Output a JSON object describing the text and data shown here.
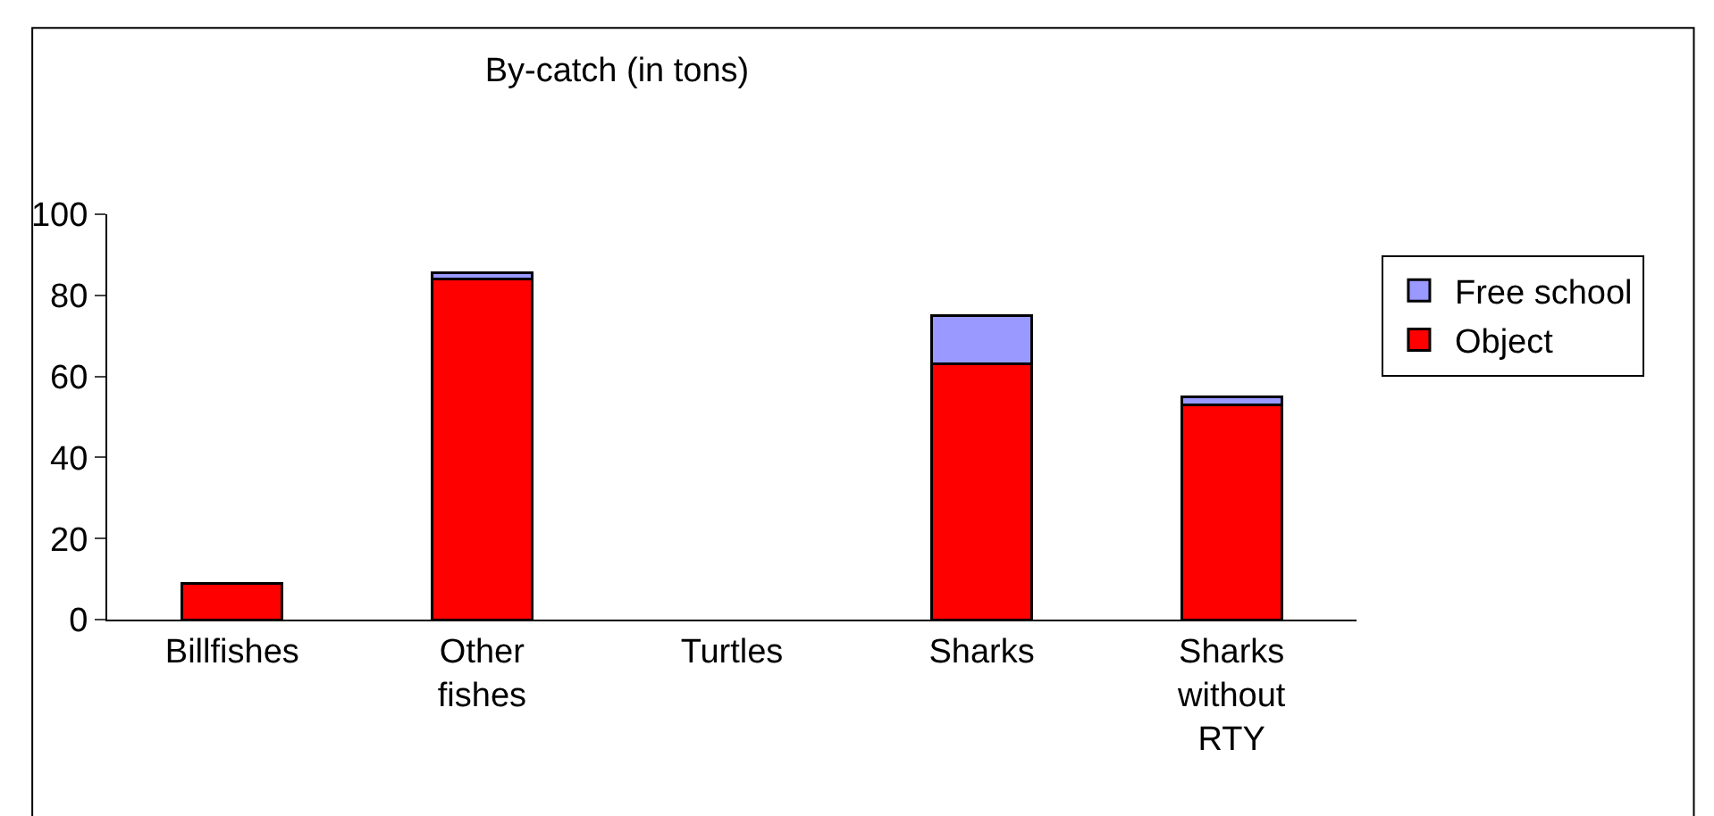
{
  "chart_data": {
    "type": "bar",
    "title": "By-catch (in tons)",
    "stacked": true,
    "categories": [
      "Billfishes",
      "Other fishes",
      "Turtles",
      "Sharks",
      "Sharks without RTY"
    ],
    "series": [
      {
        "name": "Object",
        "color": "#ff0000",
        "values": [
          9,
          84,
          null,
          63,
          53
        ]
      },
      {
        "name": "Free school",
        "color": "#9999ff",
        "values": [
          null,
          1.5,
          null,
          12,
          2
        ]
      }
    ],
    "ylim": [
      0,
      100
    ],
    "yticks": [
      0,
      20,
      40,
      60,
      80,
      100
    ],
    "legend": "right"
  }
}
